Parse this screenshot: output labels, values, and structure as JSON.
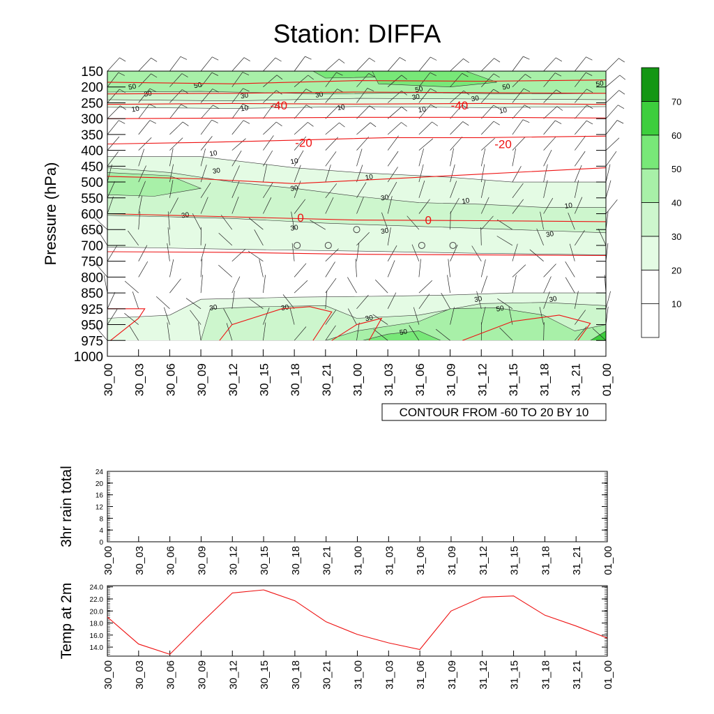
{
  "title": "Station: DIFFA",
  "chart_data": [
    {
      "type": "heatmap",
      "ylabel": "Pressure (hPa)",
      "pressure_levels": [
        150,
        200,
        250,
        300,
        350,
        400,
        450,
        500,
        550,
        600,
        650,
        700,
        750,
        800,
        850,
        925,
        950,
        975,
        1000
      ],
      "pressure_tick_labels": [
        "150",
        "200",
        "250",
        "300",
        "350",
        "400",
        "450",
        "500",
        "550",
        "600",
        "650",
        "700",
        "750",
        "800",
        "850",
        "925",
        "950",
        "975",
        "1000"
      ],
      "time_labels": [
        "30_00",
        "30_03",
        "30_06",
        "30_09",
        "30_12",
        "30_15",
        "30_18",
        "30_21",
        "31_00",
        "31_03",
        "31_06",
        "31_09",
        "31_12",
        "31_15",
        "31_18",
        "31_21",
        "01_00"
      ],
      "shading": "relative humidity (%)",
      "colorbar_ticks": [
        "10",
        "20",
        "30",
        "40",
        "50",
        "60",
        "70"
      ],
      "colorbar_levels": [
        10,
        20,
        30,
        40,
        50,
        60,
        70
      ],
      "colorbar_colors": [
        "#ffffff",
        "#ffffff",
        "#e4fbe4",
        "#cdf6cd",
        "#a8f0a8",
        "#78e878",
        "#3dce3d",
        "#149614"
      ],
      "temperature_contour_color": "#ee1111",
      "temperature_contours": [
        {
          "level": -40,
          "label": "-40"
        },
        {
          "level": -20,
          "label": "-20"
        },
        {
          "level": 0,
          "label": "0"
        }
      ],
      "rh_contour_labels": [
        "10",
        "30",
        "50"
      ],
      "contour_info": "CONTOUR FROM -60 TO 20 BY 10"
    },
    {
      "type": "line",
      "ylabel": "3hr rain total",
      "x": [
        "30_00",
        "30_03",
        "30_06",
        "30_09",
        "30_12",
        "30_15",
        "30_18",
        "30_21",
        "31_00",
        "31_03",
        "31_06",
        "31_09",
        "31_12",
        "31_15",
        "31_18",
        "31_21",
        "01_00"
      ],
      "values": [
        0,
        0,
        0,
        0,
        0,
        0,
        0,
        0,
        0,
        0,
        0,
        0,
        0,
        0,
        0,
        0,
        0
      ],
      "ylim": [
        0,
        24
      ],
      "yticks": [
        "0",
        "4",
        "8",
        "12",
        "16",
        "20",
        "24"
      ]
    },
    {
      "type": "line",
      "ylabel": "Temp at 2m",
      "x": [
        "30_00",
        "30_03",
        "30_06",
        "30_09",
        "30_12",
        "30_15",
        "30_18",
        "30_21",
        "31_00",
        "31_03",
        "31_06",
        "31_09",
        "31_12",
        "31_15",
        "31_18",
        "31_21",
        "01_00"
      ],
      "values": [
        19.0,
        14.5,
        12.8,
        18.0,
        23.0,
        23.5,
        21.7,
        18.2,
        16.1,
        14.7,
        13.6,
        20.0,
        22.3,
        22.5,
        19.3,
        17.5,
        15.5
      ],
      "ylim": [
        12.5,
        24.2
      ],
      "yticks": [
        "14.0",
        "16.0",
        "18.0",
        "20.0",
        "22.0",
        "24.0"
      ],
      "line_color": "#ee1111"
    }
  ]
}
